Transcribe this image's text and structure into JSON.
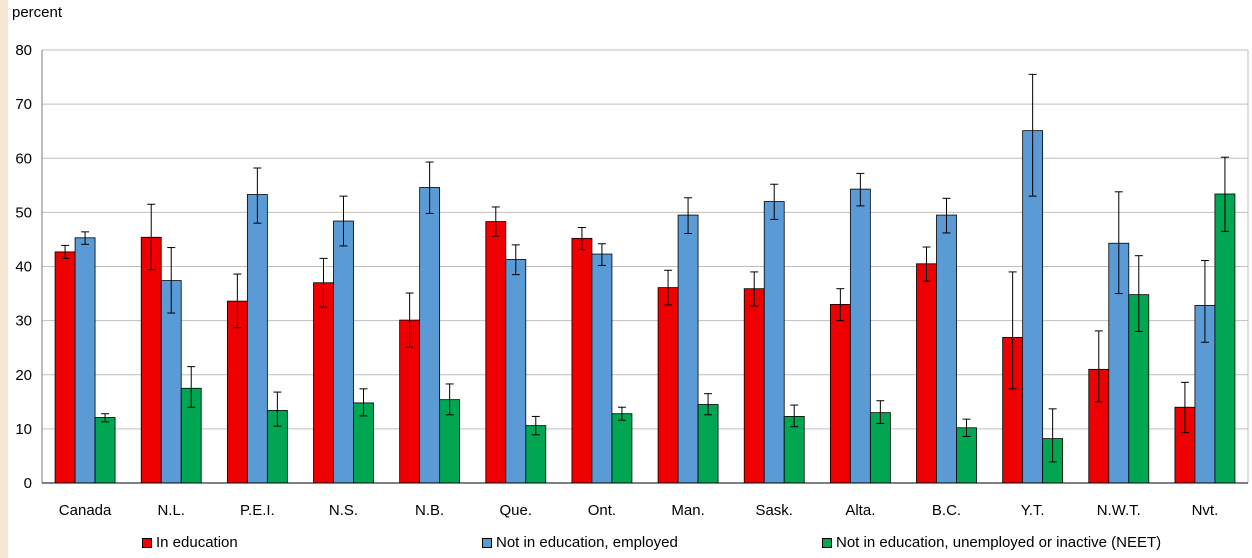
{
  "chart_data": {
    "type": "bar",
    "ylabel": "percent",
    "ylim": [
      0,
      80
    ],
    "yticks": [
      0,
      10,
      20,
      30,
      40,
      50,
      60,
      70,
      80
    ],
    "categories": [
      "Canada",
      "N.L.",
      "P.E.I.",
      "N.S.",
      "N.B.",
      "Que.",
      "Ont.",
      "Man.",
      "Sask.",
      "Alta.",
      "B.C.",
      "Y.T.",
      "N.W.T.",
      "Nvt."
    ],
    "series": [
      {
        "name": "In education",
        "color": "#ee0000",
        "values": [
          42.7,
          45.4,
          33.6,
          37.0,
          30.1,
          48.3,
          45.2,
          36.1,
          35.9,
          33.0,
          40.5,
          26.9,
          21.0,
          14.0
        ],
        "err_low": [
          41.5,
          39.4,
          28.7,
          32.5,
          25.1,
          45.6,
          43.1,
          32.9,
          32.7,
          30.0,
          37.3,
          17.4,
          15.0,
          9.3
        ],
        "err_high": [
          43.9,
          51.5,
          38.6,
          41.5,
          35.1,
          51.0,
          47.2,
          39.3,
          39.0,
          35.9,
          43.6,
          39.0,
          28.1,
          18.6
        ]
      },
      {
        "name": "Not in education, employed",
        "color": "#5b9bd5",
        "values": [
          45.3,
          37.4,
          53.3,
          48.4,
          54.6,
          41.3,
          42.3,
          49.5,
          52.0,
          54.3,
          49.5,
          65.1,
          44.3,
          32.8
        ],
        "err_low": [
          44.1,
          31.4,
          48.0,
          43.8,
          49.8,
          38.5,
          40.2,
          46.1,
          48.7,
          51.2,
          46.2,
          53.0,
          35.0,
          26.0
        ],
        "err_high": [
          46.4,
          43.5,
          58.2,
          53.0,
          59.3,
          44.0,
          44.2,
          52.7,
          55.2,
          57.2,
          52.6,
          75.5,
          53.8,
          41.1
        ]
      },
      {
        "name": "Not in education, unemployed or inactive (NEET)",
        "color": "#00a651",
        "values": [
          12.1,
          17.5,
          13.4,
          14.8,
          15.4,
          10.6,
          12.8,
          14.5,
          12.3,
          13.0,
          10.2,
          8.2,
          34.8,
          53.4
        ],
        "err_low": [
          11.3,
          14.0,
          10.5,
          12.4,
          12.6,
          8.9,
          11.6,
          12.6,
          10.4,
          11.0,
          8.6,
          3.9,
          28.0,
          46.5
        ],
        "err_high": [
          12.8,
          21.5,
          16.8,
          17.4,
          18.3,
          12.3,
          14.0,
          16.5,
          14.4,
          15.2,
          11.8,
          13.7,
          42.0,
          60.2
        ]
      }
    ]
  }
}
